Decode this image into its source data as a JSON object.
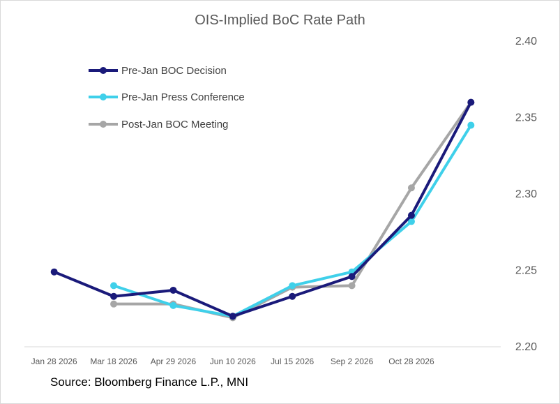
{
  "chart_data": {
    "type": "line",
    "title": "OIS-Implied BoC Rate Path",
    "xlabel": "",
    "ylabel": "",
    "x_tick_labels": [
      "Jan 28 2026",
      "Mar 18 2026",
      "Apr 29 2026",
      "Jun 10 2026",
      "Jul 15 2026",
      "Sep 2 2026",
      "Oct 28 2026"
    ],
    "ylim": [
      2.2,
      2.4
    ],
    "y_ticks": [
      "2.20",
      "2.25",
      "2.30",
      "2.35",
      "2.40"
    ],
    "legend_position": "top-left",
    "grid": false,
    "series": [
      {
        "name": "Pre-Jan BOC Decision",
        "color": "#1a1a7a",
        "points": [
          [
            0,
            2.249
          ],
          [
            1,
            2.233
          ],
          [
            2,
            2.237
          ],
          [
            3,
            2.22
          ],
          [
            4,
            2.233
          ],
          [
            5,
            2.246
          ],
          [
            6,
            2.286
          ],
          [
            7,
            2.36
          ]
        ]
      },
      {
        "name": "Pre-Jan Press Conference",
        "color": "#3fd0ea",
        "points": [
          [
            1,
            2.24
          ],
          [
            2,
            2.227
          ],
          [
            3,
            2.22
          ],
          [
            4,
            2.24
          ],
          [
            5,
            2.249
          ],
          [
            6,
            2.282
          ],
          [
            7,
            2.345
          ]
        ]
      },
      {
        "name": "Post-Jan BOC Meeting",
        "color": "#a6a6a6",
        "points": [
          [
            1,
            2.228
          ],
          [
            2,
            2.228
          ],
          [
            3,
            2.219
          ],
          [
            4,
            2.239
          ],
          [
            5,
            2.24
          ],
          [
            6,
            2.304
          ],
          [
            7,
            2.36
          ]
        ]
      }
    ]
  },
  "source": "Source: Bloomberg Finance L.P., MNI"
}
